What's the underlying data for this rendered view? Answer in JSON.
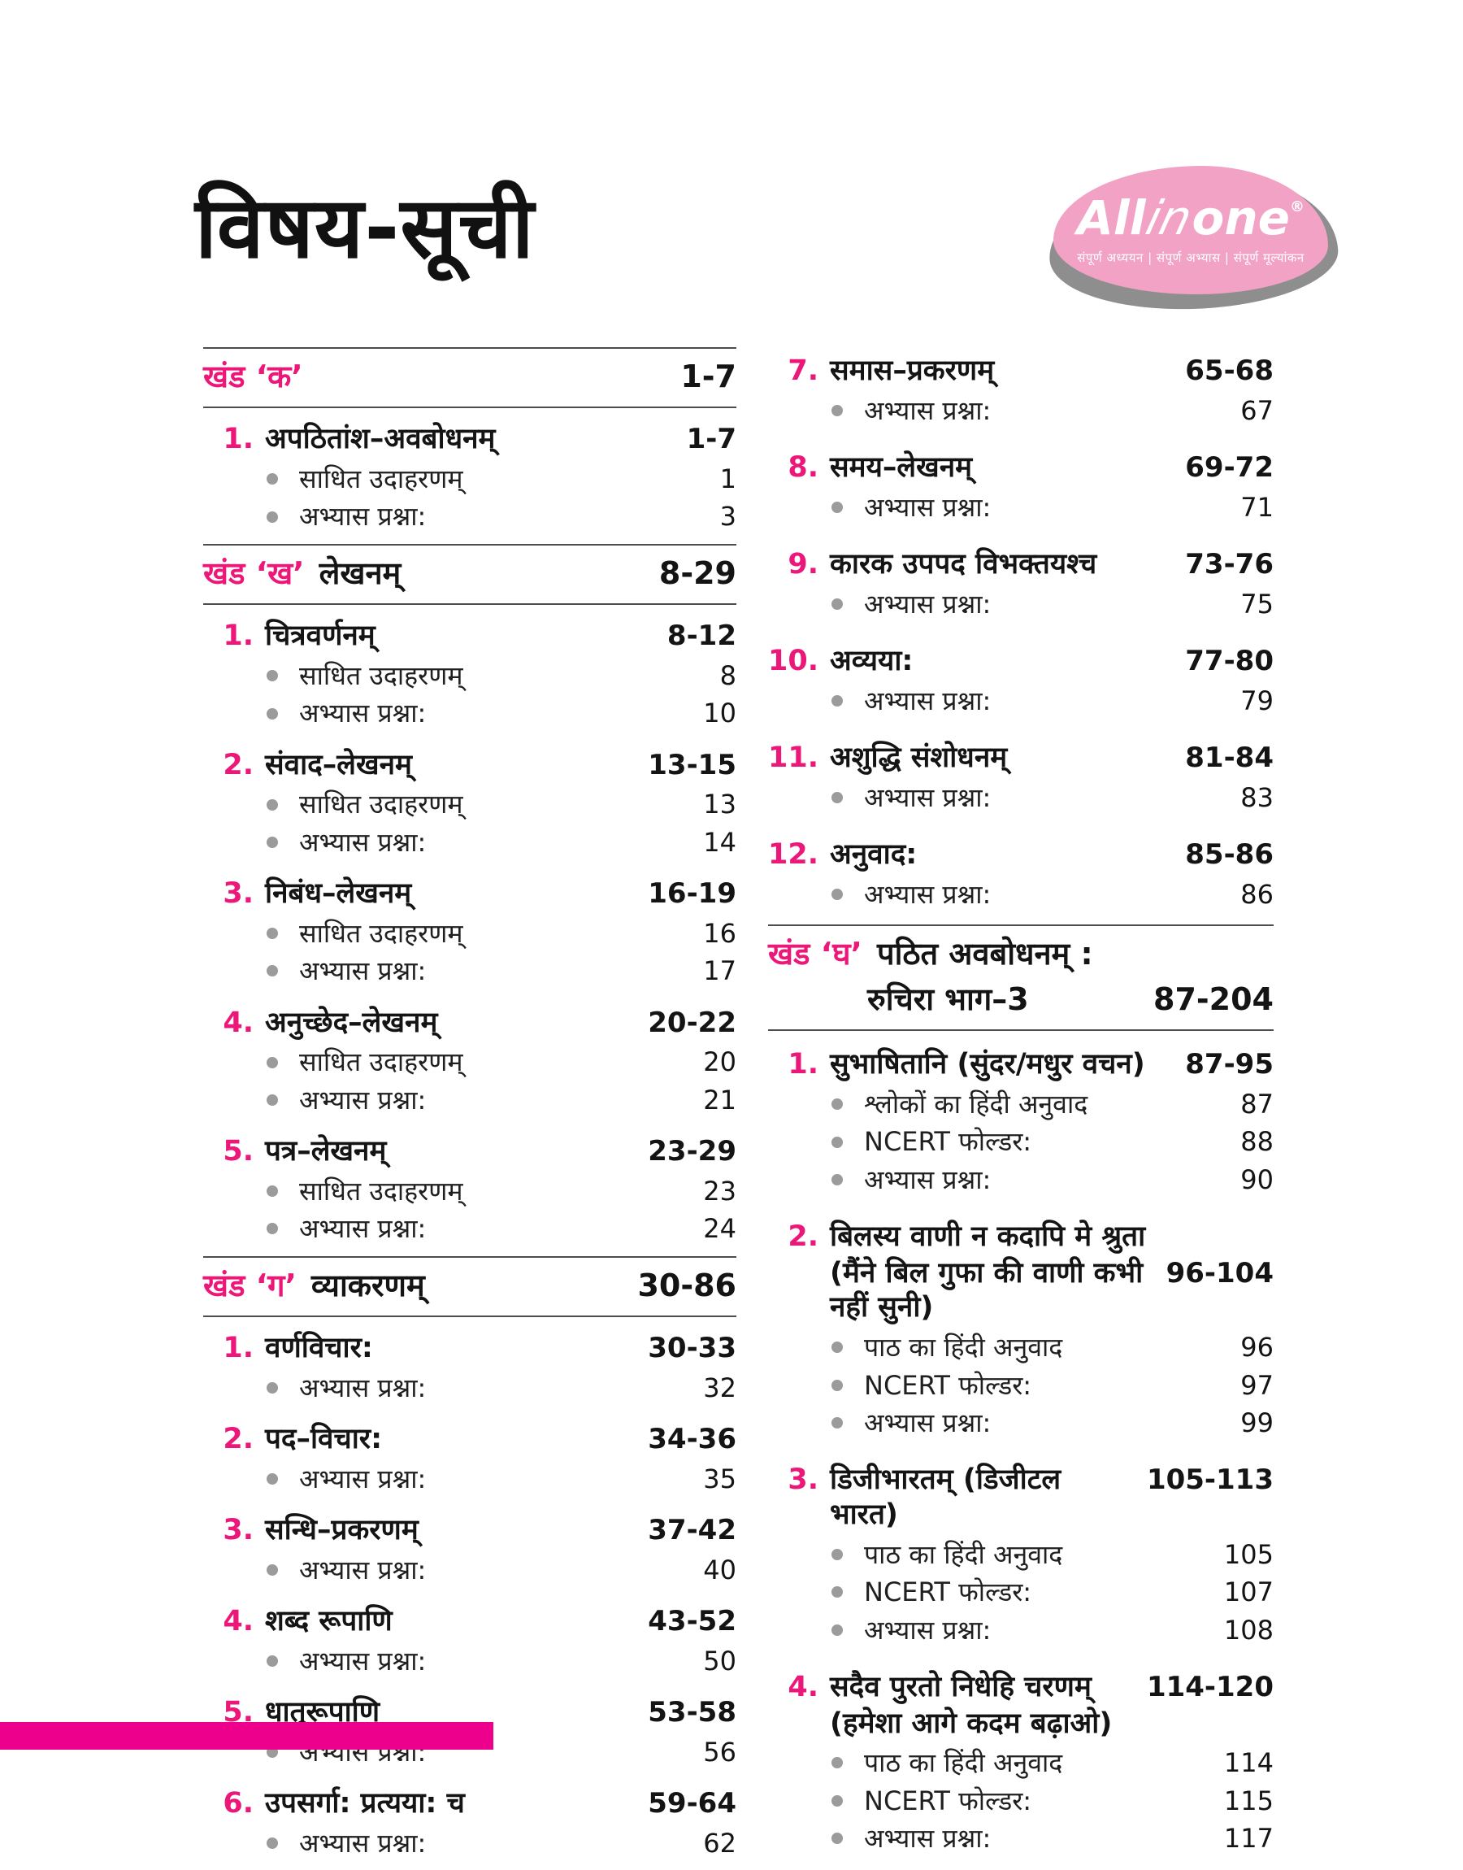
{
  "page": {
    "title": "विषय-सूची"
  },
  "logo": {
    "brand_all": "All",
    "brand_in": "in",
    "brand_one": "one",
    "reg_mark": "®",
    "tagline": "संपूर्ण अध्ययन | संपूर्ण अभ्यास | संपूर्ण मूल्यांकन"
  },
  "colors": {
    "accent_pink": "#EC1879",
    "footer_bar_pink": "#EC008C",
    "logo_blob_pink": "#F2A2C4",
    "logo_shadow_gray": "#8E8E8E",
    "bullet_gray": "#9B9B9B",
    "rule_gray": "#4D4D4D",
    "text_black": "#141414"
  },
  "icons": {
    "list_bullet": "filled-circle"
  },
  "left_column": {
    "sections": [
      {
        "header": {
          "label": "खंड ‘क’",
          "title": "",
          "range": "1-7",
          "line2_title": "",
          "line2_range": ""
        },
        "items": [
          {
            "num": "1.",
            "title": "अपठितांश–अवबोधनम्",
            "range": "1-7",
            "title2": "",
            "range_on_line2": false,
            "subs": [
              {
                "text": "साधित उदाहरणम्",
                "page": "1"
              },
              {
                "text": "अभ्यास प्रश्ना:",
                "page": "3"
              }
            ]
          }
        ]
      },
      {
        "header": {
          "label": "खंड ‘ख’",
          "title": "लेखनम्",
          "range": "8-29",
          "line2_title": "",
          "line2_range": ""
        },
        "items": [
          {
            "num": "1.",
            "title": "चित्रवर्णनम्",
            "range": "8-12",
            "title2": "",
            "range_on_line2": false,
            "subs": [
              {
                "text": "साधित उदाहरणम्",
                "page": "8"
              },
              {
                "text": "अभ्यास प्रश्ना:",
                "page": "10"
              }
            ]
          },
          {
            "num": "2.",
            "title": "संवाद–लेखनम्",
            "range": "13-15",
            "title2": "",
            "range_on_line2": false,
            "subs": [
              {
                "text": "साधित उदाहरणम्",
                "page": "13"
              },
              {
                "text": "अभ्यास प्रश्ना:",
                "page": "14"
              }
            ]
          },
          {
            "num": "3.",
            "title": "निबंध–लेखनम्",
            "range": "16-19",
            "title2": "",
            "range_on_line2": false,
            "subs": [
              {
                "text": "साधित उदाहरणम्",
                "page": "16"
              },
              {
                "text": "अभ्यास प्रश्ना:",
                "page": "17"
              }
            ]
          },
          {
            "num": "4.",
            "title": "अनुच्छेद–लेखनम्",
            "range": "20-22",
            "title2": "",
            "range_on_line2": false,
            "subs": [
              {
                "text": "साधित उदाहरणम्",
                "page": "20"
              },
              {
                "text": "अभ्यास प्रश्ना:",
                "page": "21"
              }
            ]
          },
          {
            "num": "5.",
            "title": "पत्र–लेखनम्",
            "range": "23-29",
            "title2": "",
            "range_on_line2": false,
            "subs": [
              {
                "text": "साधित उदाहरणम्",
                "page": "23"
              },
              {
                "text": "अभ्यास प्रश्ना:",
                "page": "24"
              }
            ]
          }
        ]
      },
      {
        "header": {
          "label": "खंड ‘ग’",
          "title": "व्याकरणम्",
          "range": "30-86",
          "line2_title": "",
          "line2_range": ""
        },
        "items": [
          {
            "num": "1.",
            "title": "वर्णविचार:",
            "range": "30-33",
            "title2": "",
            "range_on_line2": false,
            "subs": [
              {
                "text": "अभ्यास प्रश्ना:",
                "page": "32"
              }
            ]
          },
          {
            "num": "2.",
            "title": "पद–विचार:",
            "range": "34-36",
            "title2": "",
            "range_on_line2": false,
            "subs": [
              {
                "text": "अभ्यास प्रश्ना:",
                "page": "35"
              }
            ]
          },
          {
            "num": "3.",
            "title": "सन्धि–प्रकरणम्",
            "range": "37-42",
            "title2": "",
            "range_on_line2": false,
            "subs": [
              {
                "text": "अभ्यास प्रश्ना:",
                "page": "40"
              }
            ]
          },
          {
            "num": "4.",
            "title": "शब्द रूपाणि",
            "range": "43-52",
            "title2": "",
            "range_on_line2": false,
            "subs": [
              {
                "text": "अभ्यास प्रश्ना:",
                "page": "50"
              }
            ]
          },
          {
            "num": "5.",
            "title": "धातुरूपाणि",
            "range": "53-58",
            "title2": "",
            "range_on_line2": false,
            "subs": [
              {
                "text": "अभ्यास प्रश्ना:",
                "page": "56"
              }
            ]
          },
          {
            "num": "6.",
            "title": "उपसर्गा: प्रत्यया: च",
            "range": "59-64",
            "title2": "",
            "range_on_line2": false,
            "subs": [
              {
                "text": "अभ्यास प्रश्ना:",
                "page": "62"
              }
            ]
          }
        ]
      }
    ]
  },
  "right_column": {
    "sections": [
      {
        "header": null,
        "items": [
          {
            "num": "7.",
            "title": "समास–प्रकरणम्",
            "range": "65-68",
            "title2": "",
            "range_on_line2": false,
            "subs": [
              {
                "text": "अभ्यास प्रश्ना:",
                "page": "67"
              }
            ]
          },
          {
            "num": "8.",
            "title": "समय–लेखनम्",
            "range": "69-72",
            "title2": "",
            "range_on_line2": false,
            "subs": [
              {
                "text": "अभ्यास प्रश्ना:",
                "page": "71"
              }
            ]
          },
          {
            "num": "9.",
            "title": "कारक उपपद विभक्तयश्च",
            "range": "73-76",
            "title2": "",
            "range_on_line2": false,
            "subs": [
              {
                "text": "अभ्यास प्रश्ना:",
                "page": "75"
              }
            ]
          },
          {
            "num": "10.",
            "title": "अव्यया:",
            "range": "77-80",
            "title2": "",
            "range_on_line2": false,
            "subs": [
              {
                "text": "अभ्यास प्रश्ना:",
                "page": "79"
              }
            ]
          },
          {
            "num": "11.",
            "title": "अशुद्धि संशोधनम्",
            "range": "81-84",
            "title2": "",
            "range_on_line2": false,
            "subs": [
              {
                "text": "अभ्यास प्रश्ना:",
                "page": "83"
              }
            ]
          },
          {
            "num": "12.",
            "title": "अनुवाद:",
            "range": "85-86",
            "title2": "",
            "range_on_line2": false,
            "subs": [
              {
                "text": "अभ्यास प्रश्ना:",
                "page": "86"
              }
            ]
          }
        ]
      },
      {
        "header": {
          "label": "खंड ‘घ’",
          "title": "पठित अवबोधनम् :",
          "range": "",
          "line2_title": "रुचिरा भाग–3",
          "line2_range": "87-204"
        },
        "items": [
          {
            "num": "1.",
            "title": "सुभाषितानि (सुंदर/मधुर वचन)",
            "range": "87-95",
            "title2": "",
            "range_on_line2": false,
            "subs": [
              {
                "text": "श्लोकों का हिंदी अनुवाद",
                "page": "87"
              },
              {
                "text": "NCERT फोल्डर:",
                "page": "88"
              },
              {
                "text": "अभ्यास प्रश्ना:",
                "page": "90"
              }
            ]
          },
          {
            "num": "2.",
            "title": "बिलस्य वाणी न कदापि मे श्रुता",
            "range": "96-104",
            "title2": "(मैंने बिल गुफा की वाणी कभी नहीं सुनी)",
            "range_on_line2": true,
            "subs": [
              {
                "text": "पाठ का हिंदी अनुवाद",
                "page": "96"
              },
              {
                "text": "NCERT फोल्डर:",
                "page": "97"
              },
              {
                "text": "अभ्यास प्रश्ना:",
                "page": "99"
              }
            ]
          },
          {
            "num": "3.",
            "title": "डिजीभारतम् (डिजीटल भारत)",
            "range": "105-113",
            "title2": "",
            "range_on_line2": false,
            "subs": [
              {
                "text": "पाठ का हिंदी अनुवाद",
                "page": "105"
              },
              {
                "text": "NCERT फोल्डर:",
                "page": "107"
              },
              {
                "text": "अभ्यास प्रश्ना:",
                "page": "108"
              }
            ]
          },
          {
            "num": "4.",
            "title": "सदैव पुरतो निधेहि चरणम्",
            "range": "114-120",
            "title2": "(हमेशा आगे कदम बढ़ाओ)",
            "range_on_line2": false,
            "subs": [
              {
                "text": "पाठ का हिंदी अनुवाद",
                "page": "114"
              },
              {
                "text": "NCERT फोल्डर:",
                "page": "115"
              },
              {
                "text": "अभ्यास प्रश्ना:",
                "page": "117"
              }
            ]
          }
        ]
      }
    ]
  }
}
